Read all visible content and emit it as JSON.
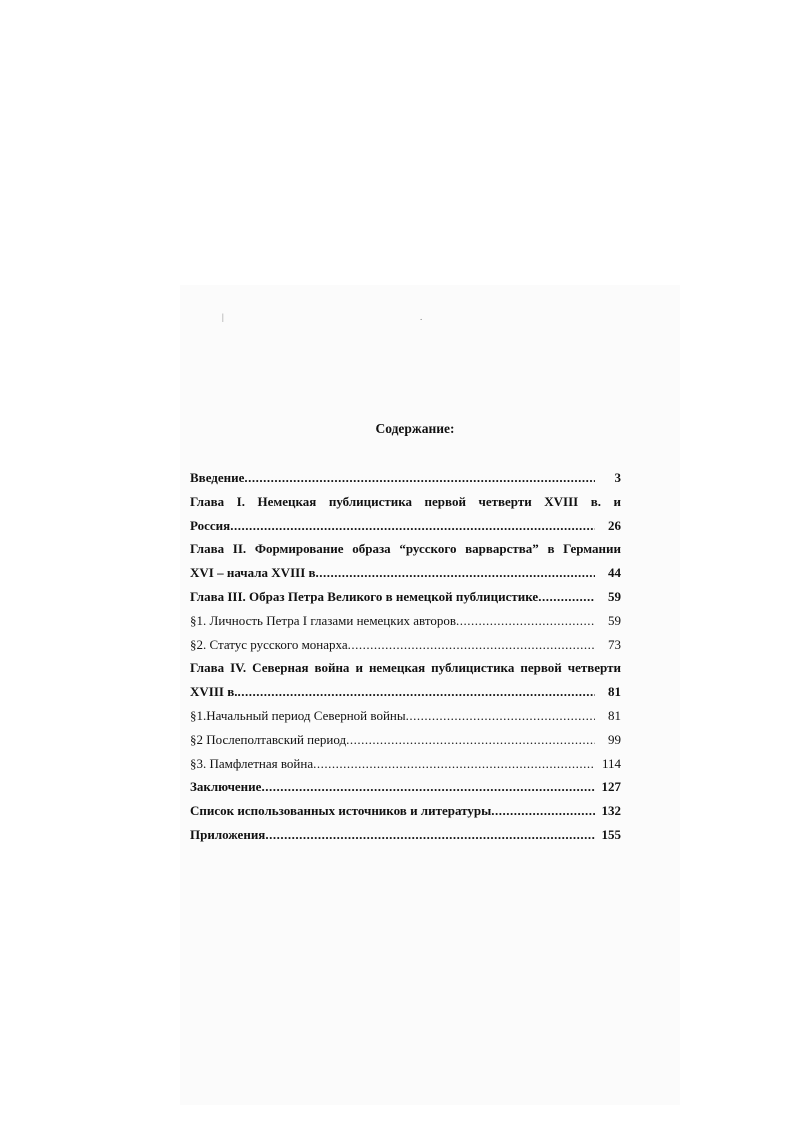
{
  "title": "Содержание:",
  "entries": [
    {
      "text": "Введение",
      "page": "3",
      "bold": true
    },
    {
      "text_first_line": "Глава I. Немецкая публицистика первой четверти XVIII в. и",
      "text": "Россия",
      "page": "26",
      "bold": true
    },
    {
      "text_first_line": "Глава II. Формирование образа “русского варварства” в Германии",
      "text": "XVI – начала XVIII в",
      "page": "44",
      "bold": true
    },
    {
      "text": "Глава III. Образ Петра Великого в немецкой публицистике",
      "page": "59",
      "bold": true
    },
    {
      "text": "§1. Личность Петра I глазами немецких авторов",
      "page": "59",
      "bold": false
    },
    {
      "text": "§2. Статус русского монарха",
      "page": "73",
      "bold": false
    },
    {
      "text_first_line": "Глава IV. Северная война и немецкая публицистика первой четверти",
      "text": "XVIII в. ",
      "page": "81",
      "bold": true
    },
    {
      "text": "§1.Начальный период Северной войны",
      "page": "81",
      "bold": false
    },
    {
      "text": "§2 Послеполтавский период",
      "page": "99",
      "bold": false
    },
    {
      "text": "§3. Памфлетная война",
      "page": "114",
      "bold": false
    },
    {
      "text": "Заключение",
      "page": "127",
      "bold": true
    },
    {
      "text": "Список использованных источников и литературы",
      "page": "132",
      "bold": true
    },
    {
      "text": "Приложения",
      "page": "155",
      "bold": true
    }
  ]
}
